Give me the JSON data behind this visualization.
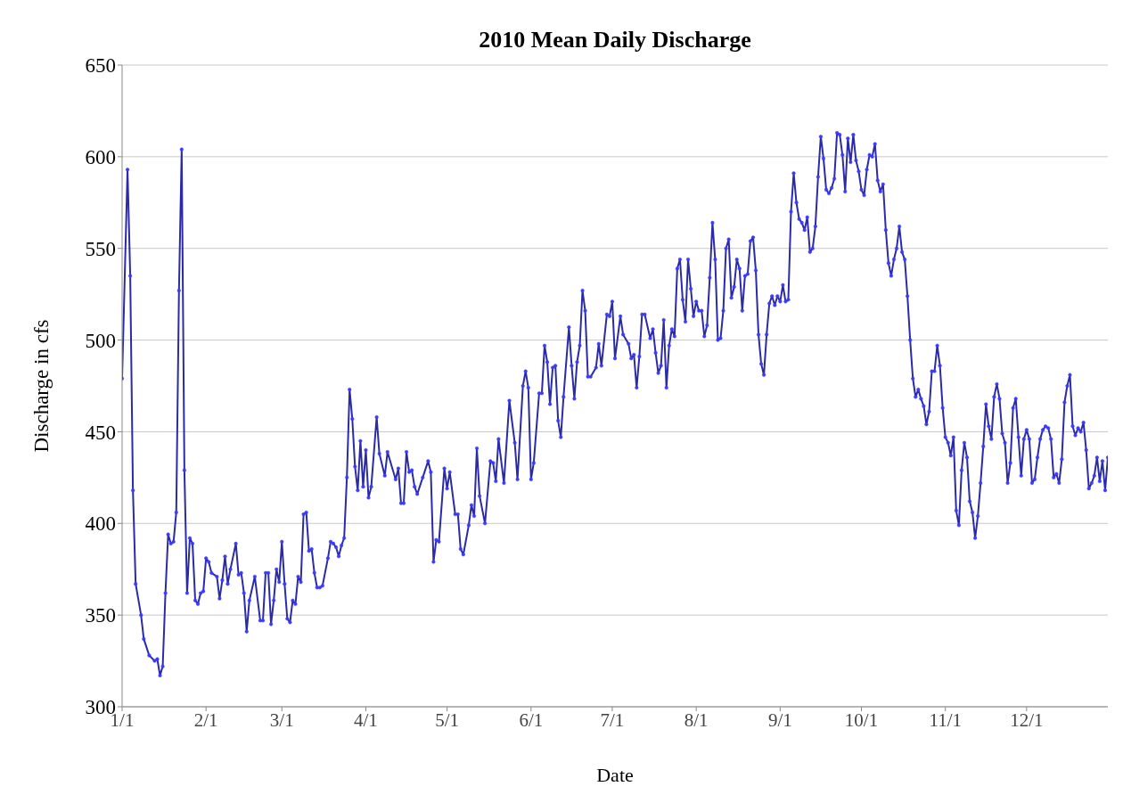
{
  "chart_data": {
    "type": "line",
    "title": "2010 Mean Daily Discharge",
    "xlabel": "Date",
    "ylabel": "Discharge in cfs",
    "xlim": [
      "--01-01",
      "--12-31"
    ],
    "xticks": [
      {
        "value": "--01-01",
        "label": "1/1"
      },
      {
        "value": "--02-01",
        "label": "2/1"
      },
      {
        "value": "--03-01",
        "label": "3/1"
      },
      {
        "value": "--04-01",
        "label": "4/1"
      },
      {
        "value": "--05-01",
        "label": "5/1"
      },
      {
        "value": "--06-01",
        "label": "6/1"
      },
      {
        "value": "--07-01",
        "label": "7/1"
      },
      {
        "value": "--08-01",
        "label": "8/1"
      },
      {
        "value": "--09-01",
        "label": "9/1"
      },
      {
        "value": "--10-01",
        "label": "10/1"
      },
      {
        "value": "--11-01",
        "label": "11/1"
      },
      {
        "value": "--12-01",
        "label": "12/1"
      }
    ],
    "ylim": [
      300,
      650
    ],
    "yticks": [
      300,
      350,
      400,
      450,
      500,
      550,
      600,
      650
    ],
    "grid": "y",
    "legend": false,
    "marker": "circle",
    "line_style": "solid",
    "series": [
      {
        "color": "#2b2ba8",
        "x": [
          "--01-01",
          "--01-03",
          "--01-04",
          "--01-05",
          "--01-06",
          "--01-08",
          "--01-09",
          "--01-11",
          "--01-13",
          "--01-14",
          "--01-15",
          "--01-16",
          "--01-17",
          "--01-18",
          "--01-19",
          "--01-20",
          "--01-21",
          "--01-22",
          "--01-23",
          "--01-24",
          "--01-25",
          "--01-26",
          "--01-27",
          "--01-28",
          "--01-29",
          "--01-30",
          "--01-31",
          "--02-01",
          "--02-02",
          "--02-03",
          "--02-05",
          "--02-06",
          "--02-07",
          "--02-08",
          "--02-09",
          "--02-10",
          "--02-12",
          "--02-13",
          "--02-14",
          "--02-15",
          "--02-16",
          "--02-17",
          "--02-19",
          "--02-21",
          "--02-22",
          "--02-23",
          "--02-24",
          "--02-25",
          "--02-26",
          "--02-27",
          "--02-28",
          "--03-01",
          "--03-02",
          "--03-03",
          "--03-04",
          "--03-05",
          "--03-06",
          "--03-07",
          "--03-08",
          "--03-09",
          "--03-10",
          "--03-11",
          "--03-12",
          "--03-13",
          "--03-14",
          "--03-15",
          "--03-16",
          "--03-18",
          "--03-19",
          "--03-20",
          "--03-21",
          "--03-22",
          "--03-23",
          "--03-24",
          "--03-25",
          "--03-26",
          "--03-27",
          "--03-28",
          "--03-29",
          "--03-30",
          "--03-31",
          "--04-01",
          "--04-02",
          "--04-03",
          "--04-05",
          "--04-06",
          "--04-08",
          "--04-09",
          "--04-12",
          "--04-13",
          "--04-14",
          "--04-15",
          "--04-16",
          "--04-17",
          "--04-18",
          "--04-19",
          "--04-20",
          "--04-22",
          "--04-24",
          "--04-25",
          "--04-26",
          "--04-27",
          "--04-28",
          "--04-30",
          "--05-01",
          "--05-02",
          "--05-04",
          "--05-05",
          "--05-06",
          "--05-07",
          "--05-09",
          "--05-10",
          "--05-11",
          "--05-12",
          "--05-13",
          "--05-15",
          "--05-17",
          "--05-18",
          "--05-19",
          "--05-20",
          "--05-22",
          "--05-24",
          "--05-26",
          "--05-27",
          "--05-29",
          "--05-30",
          "--05-31",
          "--06-01",
          "--06-02",
          "--06-04",
          "--06-05",
          "--06-06",
          "--06-07",
          "--06-08",
          "--06-09",
          "--06-10",
          "--06-11",
          "--06-12",
          "--06-13",
          "--06-15",
          "--06-16",
          "--06-17",
          "--06-18",
          "--06-19",
          "--06-20",
          "--06-21",
          "--06-22",
          "--06-23",
          "--06-25",
          "--06-26",
          "--06-27",
          "--06-29",
          "--06-30",
          "--07-01",
          "--07-02",
          "--07-04",
          "--07-05",
          "--07-07",
          "--07-08",
          "--07-09",
          "--07-10",
          "--07-11",
          "--07-12",
          "--07-13",
          "--07-15",
          "--07-16",
          "--07-17",
          "--07-18",
          "--07-19",
          "--07-20",
          "--07-21",
          "--07-22",
          "--07-23",
          "--07-24",
          "--07-25",
          "--07-26",
          "--07-27",
          "--07-28",
          "--07-29",
          "--07-30",
          "--07-31",
          "--08-01",
          "--08-02",
          "--08-03",
          "--08-04",
          "--08-05",
          "--08-06",
          "--08-07",
          "--08-08",
          "--08-09",
          "--08-10",
          "--08-11",
          "--08-12",
          "--08-13",
          "--08-14",
          "--08-15",
          "--08-16",
          "--08-17",
          "--08-18",
          "--08-19",
          "--08-20",
          "--08-21",
          "--08-22",
          "--08-23",
          "--08-24",
          "--08-25",
          "--08-26",
          "--08-27",
          "--08-28",
          "--08-29",
          "--08-30",
          "--08-31",
          "--09-01",
          "--09-02",
          "--09-03",
          "--09-04",
          "--09-05",
          "--09-06",
          "--09-07",
          "--09-08",
          "--09-09",
          "--09-10",
          "--09-11",
          "--09-12",
          "--09-13",
          "--09-14",
          "--09-15",
          "--09-16",
          "--09-17",
          "--09-18",
          "--09-19",
          "--09-20",
          "--09-21",
          "--09-22",
          "--09-23",
          "--09-24",
          "--09-25",
          "--09-26",
          "--09-27",
          "--09-28",
          "--09-29",
          "--09-30",
          "--10-01",
          "--10-02",
          "--10-03",
          "--10-04",
          "--10-05",
          "--10-06",
          "--10-07",
          "--10-08",
          "--10-09",
          "--10-10",
          "--10-11",
          "--10-12",
          "--10-13",
          "--10-14",
          "--10-15",
          "--10-16",
          "--10-17",
          "--10-18",
          "--10-19",
          "--10-20",
          "--10-21",
          "--10-22",
          "--10-23",
          "--10-24",
          "--10-25",
          "--10-26",
          "--10-27",
          "--10-28",
          "--10-29",
          "--10-30",
          "--10-31",
          "--11-01",
          "--11-02",
          "--11-03",
          "--11-04",
          "--11-05",
          "--11-06",
          "--11-07",
          "--11-08",
          "--11-09",
          "--11-10",
          "--11-11",
          "--11-12",
          "--11-13",
          "--11-14",
          "--11-15",
          "--11-16",
          "--11-17",
          "--11-18",
          "--11-19",
          "--11-20",
          "--11-21",
          "--11-22",
          "--11-23",
          "--11-24",
          "--11-25",
          "--11-26",
          "--11-27",
          "--11-28",
          "--11-29",
          "--11-30",
          "--12-01",
          "--12-02",
          "--12-03",
          "--12-04",
          "--12-05",
          "--12-06",
          "--12-07",
          "--12-08",
          "--12-09",
          "--12-10",
          "--12-11",
          "--12-12",
          "--12-13",
          "--12-14",
          "--12-15",
          "--12-16",
          "--12-17",
          "--12-18",
          "--12-19",
          "--12-20",
          "--12-21",
          "--12-22",
          "--12-23",
          "--12-24",
          "--12-25",
          "--12-26",
          "--12-27",
          "--12-28",
          "--12-29",
          "--12-30",
          "--12-31"
        ],
        "values": [
          479,
          593,
          535,
          418,
          367,
          350,
          337,
          328,
          325,
          326,
          317,
          322,
          362,
          394,
          389,
          390,
          406,
          527,
          604,
          429,
          362,
          392,
          389,
          358,
          356,
          362,
          363,
          381,
          379,
          373,
          371,
          359,
          369,
          382,
          367,
          375,
          389,
          372,
          373,
          362,
          341,
          358,
          371,
          347,
          347,
          373,
          373,
          345,
          358,
          375,
          368,
          390,
          367,
          348,
          346,
          358,
          356,
          371,
          368,
          405,
          406,
          385,
          386,
          373,
          365,
          365,
          366,
          381,
          390,
          389,
          387,
          382,
          388,
          392,
          425,
          473,
          457,
          431,
          418,
          445,
          420,
          440,
          414,
          420,
          458,
          438,
          426,
          439,
          424,
          430,
          411,
          411,
          439,
          428,
          429,
          420,
          416,
          425,
          434,
          428,
          379,
          391,
          390,
          430,
          419,
          428,
          405,
          405,
          386,
          383,
          399,
          410,
          404,
          441,
          415,
          400,
          434,
          433,
          423,
          446,
          422,
          467,
          444,
          424,
          475,
          483,
          474,
          424,
          433,
          471,
          471,
          497,
          488,
          465,
          485,
          486,
          456,
          447,
          469,
          507,
          486,
          468,
          488,
          497,
          527,
          516,
          480,
          480,
          485,
          498,
          486,
          514,
          513,
          521,
          490,
          513,
          503,
          498,
          490,
          492,
          474,
          491,
          514,
          514,
          501,
          506,
          493,
          482,
          486,
          511,
          474,
          497,
          506,
          502,
          539,
          544,
          522,
          510,
          544,
          528,
          513,
          521,
          516,
          516,
          502,
          508,
          534,
          564,
          544,
          500,
          501,
          516,
          550,
          555,
          523,
          529,
          544,
          539,
          516,
          535,
          536,
          554,
          556,
          538,
          503,
          487,
          481,
          503,
          520,
          524,
          519,
          524,
          521,
          530,
          521,
          522,
          570,
          591,
          575,
          566,
          564,
          560,
          567,
          548,
          550,
          562,
          589,
          611,
          599,
          582,
          580,
          583,
          588,
          613,
          612,
          601,
          581,
          610,
          597,
          612,
          598,
          592,
          582,
          579,
          593,
          601,
          600,
          607,
          587,
          581,
          585,
          560,
          542,
          535,
          544,
          550,
          562,
          548,
          544,
          524,
          500,
          479,
          469,
          473,
          468,
          464,
          454,
          461,
          483,
          483,
          497,
          486,
          463,
          447,
          444,
          437,
          447,
          407,
          399,
          429,
          444,
          436,
          412,
          406,
          392,
          404,
          422,
          442,
          465,
          453,
          446,
          469,
          476,
          468,
          449,
          444,
          422,
          433,
          463,
          468,
          447,
          426,
          446,
          451,
          446,
          422,
          424,
          436,
          446,
          451,
          453,
          452,
          446,
          425,
          427,
          422,
          435,
          466,
          475,
          481,
          453,
          448,
          452,
          450,
          455,
          440,
          419,
          422,
          426,
          436,
          423,
          434,
          418,
          436
        ]
      }
    ]
  }
}
